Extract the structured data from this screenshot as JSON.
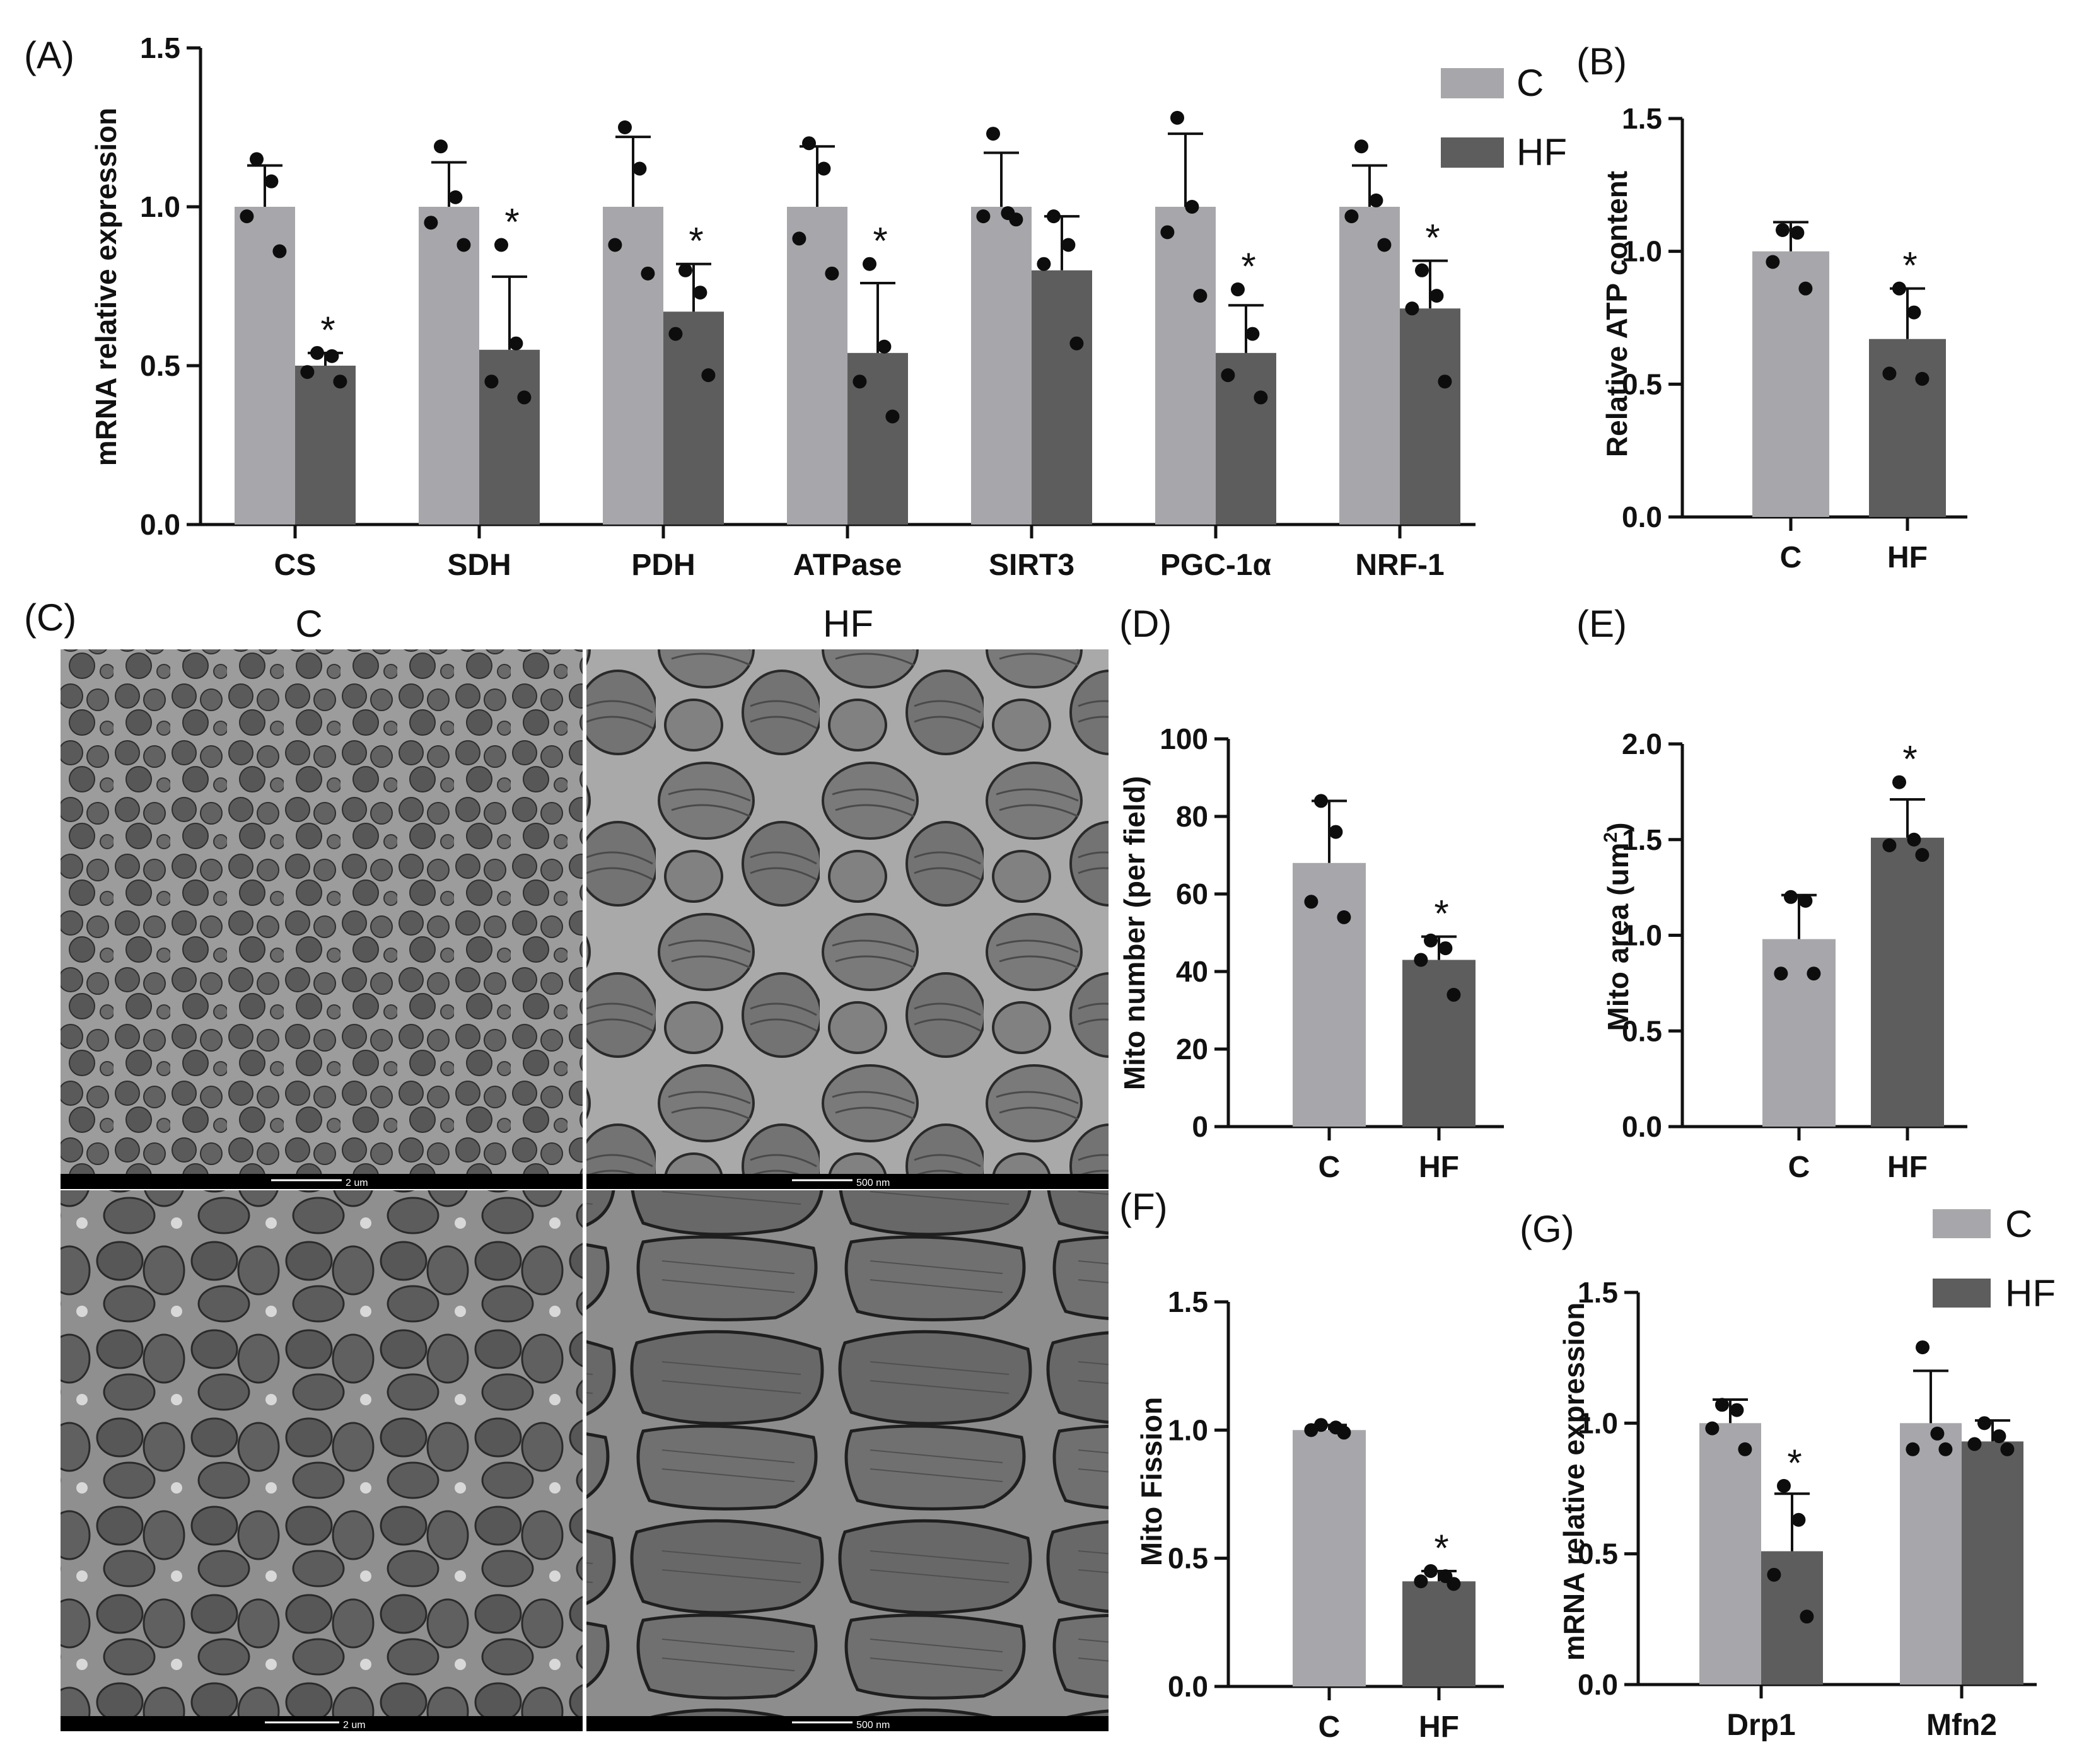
{
  "colors": {
    "control": "#a7a7ab",
    "hf": "#5d5d5d",
    "axis": "#111111",
    "dot": "#0d0d0d"
  },
  "star": "*",
  "panels": [
    {
      "label": "(A)",
      "type": "bar",
      "ylabel": "mRNA relative expression",
      "ylim": [
        0,
        1.5
      ],
      "yticks": [
        "0.0",
        "0.5",
        "1.0",
        "1.5"
      ],
      "categories": [
        "CS",
        "SDH",
        "PDH",
        "ATPase",
        "SIRT3",
        "PGC-1α",
        "NRF-1"
      ],
      "series": [
        {
          "name": "C",
          "values": [
            1.0,
            1.0,
            1.0,
            1.0,
            1.0,
            1.0,
            1.0
          ],
          "errors": [
            0.13,
            0.14,
            0.22,
            0.19,
            0.17,
            0.23,
            0.13
          ],
          "dots": [
            [
              1.15,
              1.08,
              0.97,
              0.86
            ],
            [
              1.19,
              1.03,
              0.95,
              0.88
            ],
            [
              1.25,
              1.12,
              0.88,
              0.79
            ],
            [
              1.2,
              1.12,
              0.9,
              0.79
            ],
            [
              1.23,
              0.98,
              0.97,
              0.96
            ],
            [
              1.28,
              1.0,
              0.92,
              0.72
            ],
            [
              1.19,
              1.02,
              0.97,
              0.88
            ]
          ],
          "sig": [
            false,
            false,
            false,
            false,
            false,
            false,
            false
          ]
        },
        {
          "name": "HF",
          "values": [
            0.5,
            0.55,
            0.67,
            0.54,
            0.8,
            0.54,
            0.68
          ],
          "errors": [
            0.04,
            0.23,
            0.15,
            0.22,
            0.17,
            0.15,
            0.15
          ],
          "dots": [
            [
              0.54,
              0.53,
              0.48,
              0.45
            ],
            [
              0.88,
              0.57,
              0.45,
              0.4
            ],
            [
              0.8,
              0.73,
              0.6,
              0.47
            ],
            [
              0.82,
              0.56,
              0.45,
              0.34
            ],
            [
              0.97,
              0.88,
              0.82,
              0.57
            ],
            [
              0.74,
              0.6,
              0.47,
              0.4
            ],
            [
              0.8,
              0.72,
              0.68,
              0.45
            ]
          ],
          "sig": [
            true,
            true,
            true,
            true,
            false,
            true,
            true
          ]
        }
      ],
      "legend": [
        "C",
        "HF"
      ]
    },
    {
      "label": "(B)",
      "type": "bar",
      "ylabel": "Relative ATP content",
      "ylim": [
        0,
        1.5
      ],
      "yticks": [
        "0.0",
        "0.5",
        "1.0",
        "1.5"
      ],
      "categories": [
        "C",
        "HF"
      ],
      "values": [
        1.0,
        0.67
      ],
      "errors": [
        0.11,
        0.19
      ],
      "dots": [
        [
          1.08,
          1.07,
          0.96,
          0.86
        ],
        [
          0.86,
          0.77,
          0.54,
          0.52
        ]
      ],
      "sig": [
        false,
        true
      ]
    },
    {
      "label": "(C)",
      "type": "image-grid",
      "columns": [
        "C",
        "HF"
      ],
      "scale_bars": [
        "2 um",
        "500 nm",
        "2 um",
        "500 nm"
      ]
    },
    {
      "label": "(D)",
      "type": "bar",
      "ylabel": "Mito number (per field)",
      "ylim": [
        0,
        100
      ],
      "yticks": [
        "0",
        "20",
        "40",
        "60",
        "80",
        "100"
      ],
      "categories": [
        "C",
        "HF"
      ],
      "values": [
        68,
        43
      ],
      "errors": [
        16,
        6
      ],
      "dots": [
        [
          84,
          76,
          58,
          54
        ],
        [
          48,
          46,
          43,
          34
        ]
      ],
      "sig": [
        false,
        true
      ]
    },
    {
      "label": "(E)",
      "type": "bar",
      "ylabel": "Mito area (um",
      "ylabel_sup": "2",
      "ylabel_end": ")",
      "ylim": [
        0,
        2.0
      ],
      "yticks": [
        "0.0",
        "0.5",
        "1.0",
        "1.5",
        "2.0"
      ],
      "categories": [
        "C",
        "HF"
      ],
      "values": [
        0.98,
        1.51
      ],
      "errors": [
        0.23,
        0.2
      ],
      "dots": [
        [
          1.2,
          1.18,
          0.8,
          0.8
        ],
        [
          1.8,
          1.5,
          1.47,
          1.42
        ]
      ],
      "sig": [
        false,
        true
      ]
    },
    {
      "label": "(F)",
      "type": "bar",
      "ylabel": "Mito Fission",
      "ylim": [
        0,
        1.5
      ],
      "yticks": [
        "0.0",
        "0.5",
        "1.0",
        "1.5"
      ],
      "categories": [
        "C",
        "HF"
      ],
      "values": [
        1.0,
        0.41
      ],
      "errors": [
        0.02,
        0.04
      ],
      "dots": [
        [
          1.02,
          1.01,
          1.0,
          0.99
        ],
        [
          0.45,
          0.43,
          0.41,
          0.4
        ]
      ],
      "sig": [
        false,
        true
      ]
    },
    {
      "label": "(G)",
      "type": "bar",
      "ylabel": "mRNA relative expression",
      "ylim": [
        0,
        1.5
      ],
      "yticks": [
        "0.0",
        "0.5",
        "1.0",
        "1.5"
      ],
      "categories": [
        "Drp1",
        "Mfn2"
      ],
      "series": [
        {
          "name": "C",
          "values": [
            1.0,
            1.0
          ],
          "errors": [
            0.09,
            0.2
          ],
          "dots": [
            [
              1.07,
              1.05,
              0.98,
              0.9
            ],
            [
              1.29,
              0.96,
              0.9,
              0.9
            ]
          ],
          "sig": [
            false,
            false
          ]
        },
        {
          "name": "HF",
          "values": [
            0.51,
            0.93
          ],
          "errors": [
            0.22,
            0.08
          ],
          "dots": [
            [
              0.76,
              0.63,
              0.42,
              0.26
            ],
            [
              1.0,
              0.95,
              0.92,
              0.9
            ]
          ],
          "sig": [
            true,
            false
          ]
        }
      ],
      "legend": [
        "C",
        "HF"
      ]
    }
  ]
}
